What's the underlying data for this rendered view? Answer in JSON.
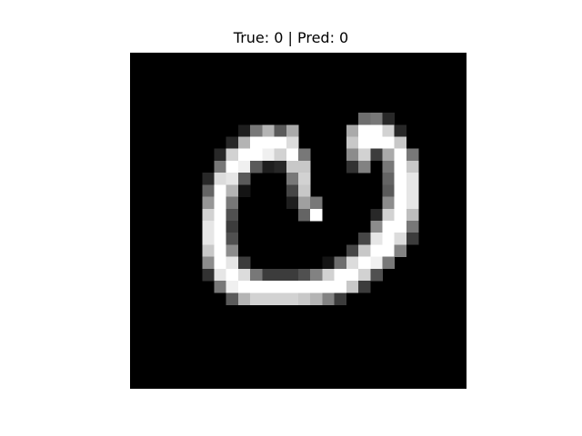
{
  "figure": {
    "title": "True: 0 | Pred: 0"
  },
  "digit_image": {
    "true_label": "0",
    "predicted_label": "0",
    "colormap": "gray",
    "grid_size": [
      28,
      28
    ],
    "pixels": [
      [
        0,
        0,
        0,
        0,
        0,
        0,
        0,
        0,
        0,
        0,
        0,
        0,
        0,
        0,
        0,
        0,
        0,
        0,
        0,
        0,
        0,
        0,
        0,
        0,
        0,
        0,
        0,
        0
      ],
      [
        0,
        0,
        0,
        0,
        0,
        0,
        0,
        0,
        0,
        0,
        0,
        0,
        0,
        0,
        0,
        0,
        0,
        0,
        0,
        0,
        0,
        0,
        0,
        0,
        0,
        0,
        0,
        0
      ],
      [
        0,
        0,
        0,
        0,
        0,
        0,
        0,
        0,
        0,
        0,
        0,
        0,
        0,
        0,
        0,
        0,
        0,
        0,
        0,
        0,
        0,
        0,
        0,
        0,
        0,
        0,
        0,
        0
      ],
      [
        0,
        0,
        0,
        0,
        0,
        0,
        0,
        0,
        0,
        0,
        0,
        0,
        0,
        0,
        0,
        0,
        0,
        0,
        0,
        0,
        0,
        0,
        0,
        0,
        0,
        0,
        0,
        0
      ],
      [
        0,
        0,
        0,
        0,
        0,
        0,
        0,
        0,
        0,
        0,
        0,
        0,
        0,
        0,
        0,
        0,
        0,
        0,
        0,
        0,
        0,
        0,
        0,
        0,
        0,
        0,
        0,
        0
      ],
      [
        0,
        0,
        0,
        0,
        0,
        0,
        0,
        0,
        0,
        0,
        0,
        0,
        0,
        0,
        0,
        0,
        0,
        0,
        0,
        110,
        120,
        40,
        0,
        0,
        0,
        0,
        0,
        0
      ],
      [
        0,
        0,
        0,
        0,
        0,
        0,
        0,
        0,
        0,
        30,
        120,
        180,
        90,
        170,
        0,
        0,
        0,
        0,
        170,
        255,
        255,
        210,
        40,
        0,
        0,
        0,
        0,
        0
      ],
      [
        0,
        0,
        0,
        0,
        0,
        0,
        0,
        0,
        40,
        180,
        255,
        255,
        255,
        220,
        0,
        0,
        0,
        0,
        200,
        255,
        255,
        255,
        200,
        0,
        0,
        0,
        0,
        0
      ],
      [
        0,
        0,
        0,
        0,
        0,
        0,
        0,
        40,
        210,
        255,
        255,
        240,
        210,
        255,
        120,
        0,
        0,
        0,
        140,
        210,
        60,
        170,
        255,
        120,
        0,
        0,
        0,
        0
      ],
      [
        0,
        0,
        0,
        0,
        0,
        0,
        0,
        120,
        255,
        240,
        90,
        30,
        40,
        200,
        200,
        0,
        0,
        0,
        50,
        130,
        0,
        120,
        255,
        200,
        0,
        0,
        0,
        0
      ],
      [
        0,
        0,
        0,
        0,
        0,
        0,
        40,
        220,
        230,
        90,
        0,
        0,
        0,
        120,
        210,
        0,
        0,
        0,
        0,
        0,
        0,
        100,
        255,
        230,
        0,
        0,
        0,
        0
      ],
      [
        0,
        0,
        0,
        0,
        0,
        0,
        100,
        255,
        180,
        20,
        0,
        0,
        0,
        70,
        200,
        0,
        0,
        0,
        0,
        0,
        0,
        90,
        255,
        230,
        0,
        0,
        0,
        0
      ],
      [
        0,
        0,
        0,
        0,
        0,
        0,
        150,
        255,
        120,
        0,
        0,
        0,
        0,
        30,
        160,
        120,
        0,
        0,
        0,
        0,
        0,
        140,
        255,
        230,
        0,
        0,
        0,
        0
      ],
      [
        0,
        0,
        0,
        0,
        0,
        0,
        210,
        255,
        80,
        0,
        0,
        0,
        0,
        0,
        100,
        255,
        0,
        0,
        0,
        0,
        40,
        210,
        255,
        190,
        0,
        0,
        0,
        0
      ],
      [
        0,
        0,
        0,
        0,
        0,
        0,
        230,
        255,
        60,
        0,
        0,
        0,
        0,
        0,
        0,
        0,
        0,
        0,
        0,
        0,
        140,
        255,
        255,
        120,
        0,
        0,
        0,
        0
      ],
      [
        0,
        0,
        0,
        0,
        0,
        0,
        230,
        255,
        80,
        0,
        0,
        0,
        0,
        0,
        0,
        0,
        0,
        0,
        0,
        70,
        230,
        255,
        220,
        60,
        0,
        0,
        0,
        0
      ],
      [
        0,
        0,
        0,
        0,
        0,
        0,
        200,
        255,
        140,
        0,
        0,
        0,
        0,
        0,
        0,
        0,
        0,
        0,
        70,
        200,
        255,
        255,
        130,
        0,
        0,
        0,
        0,
        0
      ],
      [
        0,
        0,
        0,
        0,
        0,
        0,
        140,
        255,
        230,
        60,
        0,
        0,
        0,
        0,
        0,
        0,
        20,
        110,
        220,
        255,
        240,
        120,
        0,
        0,
        0,
        0,
        0,
        0
      ],
      [
        0,
        0,
        0,
        0,
        0,
        0,
        50,
        230,
        255,
        220,
        120,
        60,
        60,
        60,
        80,
        130,
        210,
        255,
        255,
        210,
        80,
        0,
        0,
        0,
        0,
        0,
        0,
        0
      ],
      [
        0,
        0,
        0,
        0,
        0,
        0,
        0,
        120,
        240,
        255,
        255,
        255,
        255,
        255,
        255,
        255,
        255,
        255,
        200,
        60,
        0,
        0,
        0,
        0,
        0,
        0,
        0,
        0
      ],
      [
        0,
        0,
        0,
        0,
        0,
        0,
        0,
        0,
        90,
        180,
        210,
        210,
        210,
        210,
        200,
        180,
        130,
        60,
        0,
        0,
        0,
        0,
        0,
        0,
        0,
        0,
        0,
        0
      ],
      [
        0,
        0,
        0,
        0,
        0,
        0,
        0,
        0,
        0,
        0,
        0,
        0,
        0,
        0,
        0,
        0,
        0,
        0,
        0,
        0,
        0,
        0,
        0,
        0,
        0,
        0,
        0,
        0
      ],
      [
        0,
        0,
        0,
        0,
        0,
        0,
        0,
        0,
        0,
        0,
        0,
        0,
        0,
        0,
        0,
        0,
        0,
        0,
        0,
        0,
        0,
        0,
        0,
        0,
        0,
        0,
        0,
        0
      ],
      [
        0,
        0,
        0,
        0,
        0,
        0,
        0,
        0,
        0,
        0,
        0,
        0,
        0,
        0,
        0,
        0,
        0,
        0,
        0,
        0,
        0,
        0,
        0,
        0,
        0,
        0,
        0,
        0
      ],
      [
        0,
        0,
        0,
        0,
        0,
        0,
        0,
        0,
        0,
        0,
        0,
        0,
        0,
        0,
        0,
        0,
        0,
        0,
        0,
        0,
        0,
        0,
        0,
        0,
        0,
        0,
        0,
        0
      ],
      [
        0,
        0,
        0,
        0,
        0,
        0,
        0,
        0,
        0,
        0,
        0,
        0,
        0,
        0,
        0,
        0,
        0,
        0,
        0,
        0,
        0,
        0,
        0,
        0,
        0,
        0,
        0,
        0
      ],
      [
        0,
        0,
        0,
        0,
        0,
        0,
        0,
        0,
        0,
        0,
        0,
        0,
        0,
        0,
        0,
        0,
        0,
        0,
        0,
        0,
        0,
        0,
        0,
        0,
        0,
        0,
        0,
        0
      ],
      [
        0,
        0,
        0,
        0,
        0,
        0,
        0,
        0,
        0,
        0,
        0,
        0,
        0,
        0,
        0,
        0,
        0,
        0,
        0,
        0,
        0,
        0,
        0,
        0,
        0,
        0,
        0,
        0
      ]
    ]
  }
}
